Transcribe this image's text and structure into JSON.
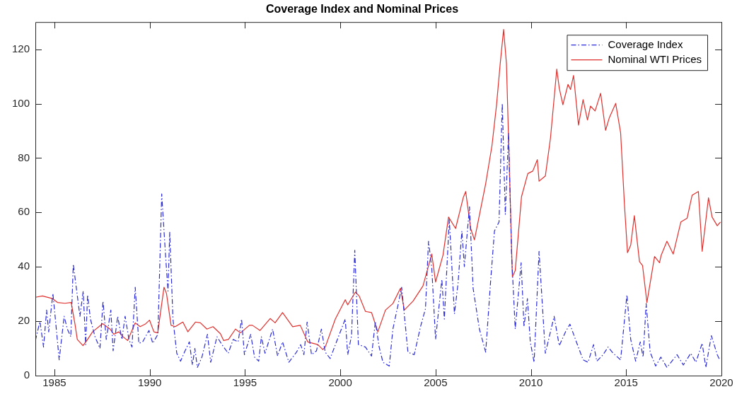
{
  "chart_data": {
    "type": "line",
    "title": "Coverage Index and Nominal Prices",
    "xlim": [
      1984,
      2020
    ],
    "xticks": [
      1985,
      1990,
      1995,
      2000,
      2005,
      2010,
      2015,
      2020
    ],
    "ylim": [
      0,
      130
    ],
    "yticks": [
      0,
      20,
      40,
      60,
      80,
      100,
      120
    ],
    "grid": false,
    "legend": "top right",
    "marker": "none",
    "series": [
      {
        "name": "Coverage Index",
        "color": "#2b2bd9",
        "line_style": "dashdot",
        "x": [
          1984.0,
          1984.24,
          1984.43,
          1984.59,
          1984.7,
          1984.92,
          1985.05,
          1985.25,
          1985.51,
          1985.68,
          1985.86,
          1985.99,
          1986.34,
          1986.51,
          1986.64,
          1986.74,
          1986.89,
          1987.13,
          1987.39,
          1987.55,
          1987.72,
          1987.96,
          1988.08,
          1988.32,
          1988.54,
          1988.71,
          1988.91,
          1989.07,
          1989.24,
          1989.43,
          1989.63,
          1989.96,
          1990.16,
          1990.43,
          1990.63,
          1990.83,
          1990.96,
          1991.05,
          1991.22,
          1991.42,
          1991.62,
          1991.82,
          1992.08,
          1992.24,
          1992.37,
          1992.5,
          1992.74,
          1993.03,
          1993.2,
          1993.53,
          1993.79,
          1994.12,
          1994.38,
          1994.64,
          1994.82,
          1994.97,
          1995.3,
          1995.5,
          1995.72,
          1995.86,
          1996.05,
          1996.45,
          1996.71,
          1996.97,
          1997.3,
          1997.7,
          1997.92,
          1998.09,
          1998.26,
          1998.49,
          1998.75,
          1999.01,
          1999.21,
          1999.47,
          1999.8,
          2000.26,
          2000.39,
          2000.59,
          2000.76,
          2000.95,
          2001.32,
          2001.64,
          2001.84,
          2002.04,
          2002.24,
          2002.57,
          2002.76,
          2003.03,
          2003.22,
          2003.55,
          2003.88,
          2004.21,
          2004.47,
          2004.63,
          2004.8,
          2005.0,
          2005.33,
          2005.46,
          2005.72,
          2005.99,
          2006.18,
          2006.38,
          2006.51,
          2006.78,
          2006.97,
          2007.3,
          2007.63,
          2007.89,
          2008.09,
          2008.33,
          2008.5,
          2008.66,
          2008.83,
          2008.99,
          2009.18,
          2009.49,
          2009.64,
          2009.82,
          2009.97,
          2010.17,
          2010.43,
          2010.76,
          2011.22,
          2011.49,
          2011.82,
          2012.05,
          2012.34,
          2012.74,
          2013.0,
          2013.29,
          2013.46,
          2013.79,
          2014.05,
          2014.32,
          2014.71,
          2015.04,
          2015.24,
          2015.5,
          2015.74,
          2015.89,
          2016.05,
          2016.26,
          2016.55,
          2016.82,
          2017.14,
          2017.67,
          2018.0,
          2018.39,
          2018.66,
          2018.99,
          2019.18,
          2019.47,
          2019.78,
          2019.91
        ],
        "values": [
          12.9,
          19.9,
          10.5,
          24.1,
          16.1,
          30.2,
          20.8,
          5.8,
          21.8,
          17.1,
          14.3,
          41.0,
          21.8,
          31.1,
          11.4,
          29.7,
          20.8,
          14.3,
          10.0,
          27.4,
          13.3,
          24.1,
          9.1,
          21.8,
          13.3,
          21.8,
          13.3,
          10.5,
          32.5,
          11.9,
          12.4,
          16.6,
          11.9,
          15.2,
          66.8,
          44.3,
          31.1,
          52.7,
          20.8,
          8.2,
          5.3,
          8.6,
          12.4,
          3.9,
          10.0,
          3.0,
          6.8,
          15.2,
          4.9,
          14.3,
          11.4,
          8.2,
          13.3,
          12.4,
          20.8,
          7.7,
          15.2,
          6.8,
          5.3,
          14.3,
          8.2,
          17.1,
          7.2,
          12.4,
          4.9,
          8.6,
          11.4,
          7.7,
          19.7,
          7.7,
          9.1,
          17.1,
          8.6,
          6.3,
          12.4,
          20.8,
          7.7,
          14.7,
          46.1,
          11.4,
          10.5,
          7.2,
          19.9,
          10.5,
          4.9,
          3.5,
          17.1,
          26.0,
          32.5,
          8.6,
          7.7,
          18.0,
          24.6,
          49.4,
          39.6,
          13.3,
          35.4,
          20.8,
          57.4,
          22.7,
          34.0,
          53.2,
          40.1,
          62.1,
          32.1,
          17.1,
          8.6,
          34.9,
          53.2,
          56.5,
          100.1,
          59.3,
          89.3,
          44.3,
          17.1,
          41.5,
          18.0,
          28.3,
          12.4,
          4.9,
          45.7,
          8.2,
          21.8,
          11.0,
          16.1,
          18.9,
          13.3,
          5.8,
          4.9,
          11.4,
          5.3,
          7.7,
          10.5,
          8.2,
          5.8,
          29.7,
          13.3,
          5.3,
          12.4,
          6.8,
          26.5,
          8.6,
          3.5,
          6.8,
          3.0,
          7.7,
          3.9,
          8.2,
          4.9,
          11.9,
          3.0,
          14.7,
          7.7,
          5.8
        ]
      },
      {
        "name": "Nominal WTI Prices",
        "color": "#e0302d",
        "line_style": "solid",
        "x": [
          1984.0,
          1984.37,
          1984.9,
          1985.16,
          1985.55,
          1985.88,
          1986.08,
          1986.2,
          1986.5,
          1986.74,
          1987.0,
          1987.53,
          1987.92,
          1988.12,
          1988.38,
          1988.58,
          1988.84,
          1989.24,
          1989.5,
          1989.76,
          1989.99,
          1990.22,
          1990.42,
          1990.75,
          1990.88,
          1991.12,
          1991.34,
          1991.74,
          1992.0,
          1992.4,
          1992.66,
          1993.0,
          1993.32,
          1993.71,
          1993.88,
          1994.13,
          1994.5,
          1994.76,
          1995.23,
          1995.39,
          1995.79,
          1996.32,
          1996.58,
          1996.97,
          1997.5,
          1997.9,
          1998.29,
          1998.82,
          1999.08,
          1999.21,
          1999.74,
          2000.26,
          2000.39,
          2000.79,
          2000.99,
          2001.32,
          2001.64,
          2001.97,
          2002.37,
          2002.76,
          2003.16,
          2003.36,
          2003.82,
          2004.34,
          2004.8,
          2005.0,
          2005.39,
          2005.68,
          2006.05,
          2006.45,
          2006.58,
          2006.84,
          2007.04,
          2007.63,
          2007.96,
          2008.2,
          2008.39,
          2008.57,
          2008.72,
          2009.03,
          2009.18,
          2009.51,
          2009.84,
          2010.1,
          2010.34,
          2010.43,
          2010.76,
          2011.03,
          2011.36,
          2011.49,
          2011.68,
          2011.95,
          2012.08,
          2012.24,
          2012.5,
          2012.74,
          2012.97,
          2013.13,
          2013.37,
          2013.66,
          2013.92,
          2014.12,
          2014.45,
          2014.71,
          2014.91,
          2015.07,
          2015.24,
          2015.43,
          2015.7,
          2015.86,
          2016.09,
          2016.49,
          2016.75,
          2016.84,
          2017.14,
          2017.47,
          2017.87,
          2018.2,
          2018.46,
          2018.79,
          2018.99,
          2019.32,
          2019.51,
          2019.78,
          2019.95
        ],
        "values": [
          28.8,
          29.3,
          28.3,
          26.9,
          26.6,
          26.9,
          18.9,
          13.3,
          11.0,
          13.3,
          16.1,
          19.1,
          17.1,
          15.2,
          16.1,
          14.4,
          12.9,
          19.4,
          18.0,
          18.9,
          20.4,
          16.1,
          15.7,
          32.5,
          30.2,
          18.5,
          18.0,
          19.7,
          16.1,
          19.7,
          19.4,
          17.1,
          18.0,
          15.4,
          12.9,
          13.3,
          17.1,
          15.7,
          18.5,
          18.5,
          16.6,
          21.0,
          19.4,
          23.2,
          18.0,
          18.5,
          12.4,
          11.4,
          9.6,
          10.5,
          20.8,
          27.9,
          26.0,
          30.7,
          29.3,
          23.6,
          23.2,
          16.1,
          24.1,
          26.5,
          32.1,
          24.1,
          27.4,
          33.0,
          44.7,
          34.4,
          44.3,
          58.3,
          54.1,
          65.4,
          67.7,
          54.1,
          49.9,
          70.6,
          84.6,
          99.6,
          114.6,
          127.3,
          114.6,
          36.3,
          38.6,
          65.8,
          74.3,
          75.2,
          79.4,
          71.5,
          73.4,
          87.4,
          112.7,
          105.7,
          99.6,
          107.1,
          105.2,
          110.4,
          92.1,
          101.5,
          94.0,
          99.1,
          97.3,
          103.8,
          90.2,
          94.9,
          100.1,
          89.3,
          63.0,
          45.2,
          48.0,
          58.8,
          41.9,
          40.5,
          26.9,
          43.8,
          41.5,
          44.3,
          49.4,
          44.7,
          56.5,
          57.9,
          66.3,
          67.7,
          45.7,
          65.4,
          58.3,
          55.1,
          56.5
        ]
      }
    ]
  }
}
